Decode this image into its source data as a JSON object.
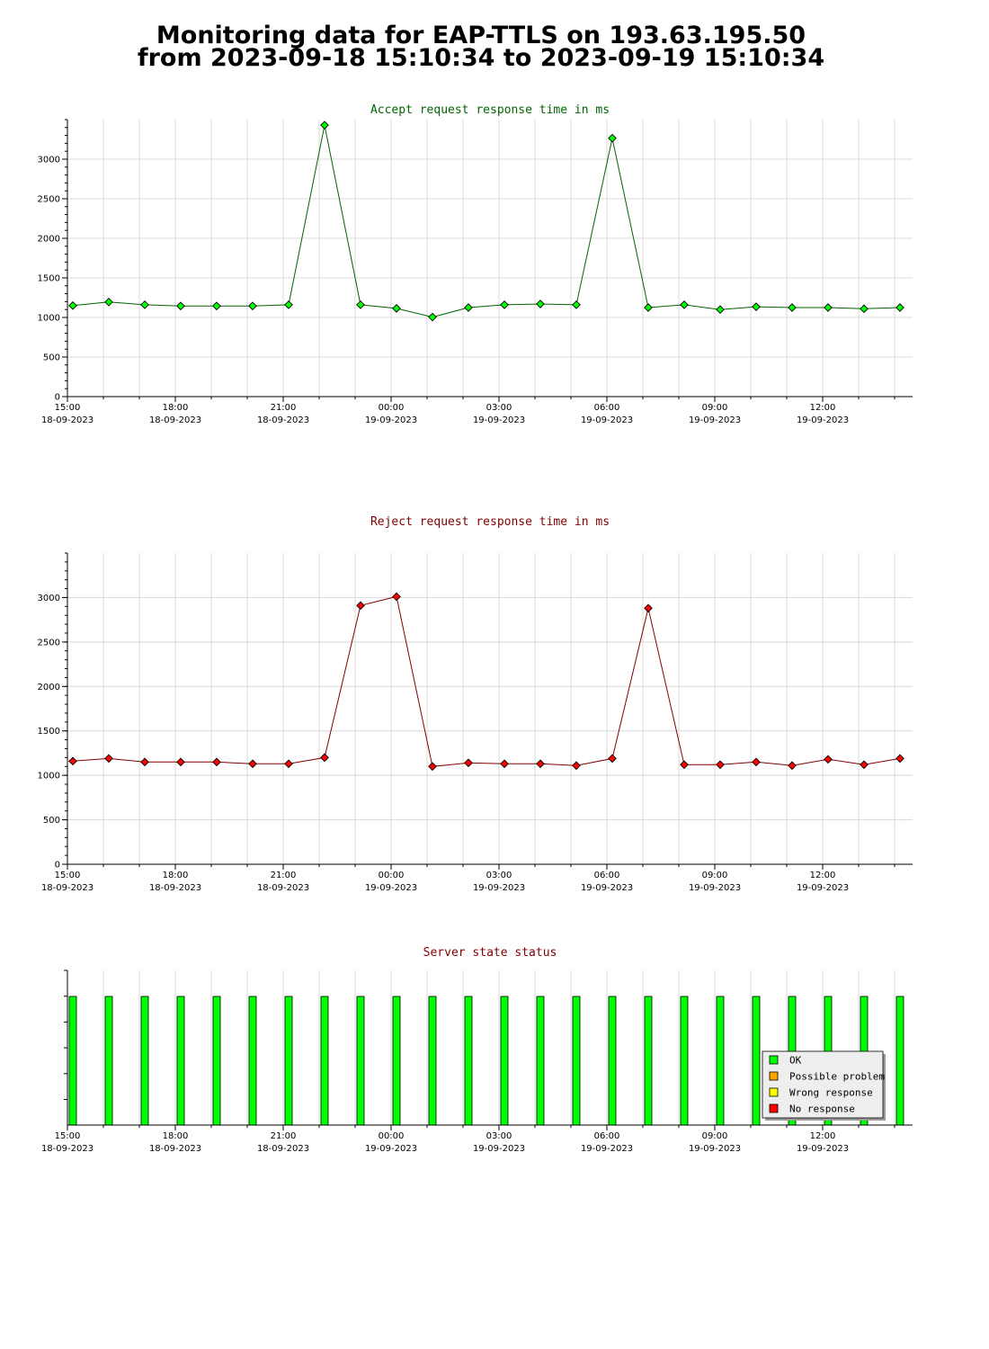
{
  "page": {
    "title_line1": "Monitoring data for EAP-TTLS on 193.63.195.50",
    "title_line2": "from 2023-09-18 15:10:34 to 2023-09-19 15:10:34"
  },
  "colors": {
    "accept_line": "#006400",
    "accept_marker": "#00ff00",
    "reject_line": "#800000",
    "reject_marker": "#ff0000",
    "ok": "#00ff00",
    "possible_problem": "#ffa500",
    "wrong_response": "#ffff00",
    "no_response": "#ff0000"
  },
  "chart_data": [
    {
      "type": "line",
      "title": "Accept request response time in ms",
      "xlabel": "",
      "ylabel": "",
      "x_ticks": [
        {
          "time": "15:00",
          "date": "18-09-2023"
        },
        {
          "time": "18:00",
          "date": "18-09-2023"
        },
        {
          "time": "21:00",
          "date": "18-09-2023"
        },
        {
          "time": "00:00",
          "date": "19-09-2023"
        },
        {
          "time": "03:00",
          "date": "19-09-2023"
        },
        {
          "time": "06:00",
          "date": "19-09-2023"
        },
        {
          "time": "09:00",
          "date": "19-09-2023"
        },
        {
          "time": "12:00",
          "date": "19-09-2023"
        }
      ],
      "x_unit": "hours after 2023-09-18 15:00",
      "xlim": [
        0,
        23.5
      ],
      "ylim": [
        0,
        3500
      ],
      "y_ticks": [
        0,
        500,
        1000,
        1500,
        2000,
        2500,
        3000
      ],
      "grid": true,
      "x": [
        0.15,
        1.15,
        2.15,
        3.15,
        4.15,
        5.15,
        6.15,
        7.15,
        8.15,
        9.15,
        10.15,
        11.15,
        12.15,
        13.15,
        14.15,
        15.15,
        16.15,
        17.15,
        18.15,
        19.15,
        20.15,
        21.15,
        22.15,
        23.15
      ],
      "values": [
        1150,
        1195,
        1160,
        1145,
        1145,
        1145,
        1160,
        3430,
        1160,
        1115,
        1005,
        1125,
        1160,
        1170,
        1160,
        3265,
        1125,
        1160,
        1100,
        1135,
        1125,
        1125,
        1110,
        1125
      ]
    },
    {
      "type": "line",
      "title": "Reject request response time in ms",
      "xlabel": "",
      "ylabel": "",
      "x_ticks": [
        {
          "time": "15:00",
          "date": "18-09-2023"
        },
        {
          "time": "18:00",
          "date": "18-09-2023"
        },
        {
          "time": "21:00",
          "date": "18-09-2023"
        },
        {
          "time": "00:00",
          "date": "19-09-2023"
        },
        {
          "time": "03:00",
          "date": "19-09-2023"
        },
        {
          "time": "06:00",
          "date": "19-09-2023"
        },
        {
          "time": "09:00",
          "date": "19-09-2023"
        },
        {
          "time": "12:00",
          "date": "19-09-2023"
        }
      ],
      "x_unit": "hours after 2023-09-18 15:00",
      "xlim": [
        0,
        23.5
      ],
      "ylim": [
        0,
        3500
      ],
      "y_ticks": [
        0,
        500,
        1000,
        1500,
        2000,
        2500,
        3000
      ],
      "grid": true,
      "x": [
        0.15,
        1.15,
        2.15,
        3.15,
        4.15,
        5.15,
        6.15,
        7.15,
        8.15,
        9.15,
        10.15,
        11.15,
        12.15,
        13.15,
        14.15,
        15.15,
        16.15,
        17.15,
        18.15,
        19.15,
        20.15,
        21.15,
        22.15,
        23.15
      ],
      "values": [
        1160,
        1190,
        1150,
        1150,
        1150,
        1130,
        1130,
        1200,
        2910,
        3010,
        1100,
        1140,
        1130,
        1130,
        1110,
        1190,
        2880,
        1120,
        1120,
        1150,
        1110,
        1180,
        1120,
        1190
      ]
    },
    {
      "type": "bar",
      "title": "Server state status",
      "xlabel": "",
      "ylabel": "",
      "x_ticks": [
        {
          "time": "15:00",
          "date": "18-09-2023"
        },
        {
          "time": "18:00",
          "date": "18-09-2023"
        },
        {
          "time": "21:00",
          "date": "18-09-2023"
        },
        {
          "time": "00:00",
          "date": "19-09-2023"
        },
        {
          "time": "03:00",
          "date": "19-09-2023"
        },
        {
          "time": "06:00",
          "date": "19-09-2023"
        },
        {
          "time": "09:00",
          "date": "19-09-2023"
        },
        {
          "time": "12:00",
          "date": "19-09-2023"
        }
      ],
      "x_unit": "hours after 2023-09-18 15:00",
      "xlim": [
        0,
        23.5
      ],
      "x": [
        0.15,
        1.15,
        2.15,
        3.15,
        4.15,
        5.15,
        6.15,
        7.15,
        8.15,
        9.15,
        10.15,
        11.15,
        12.15,
        13.15,
        14.15,
        15.15,
        16.15,
        17.15,
        18.15,
        19.15,
        20.15,
        21.15,
        22.15,
        23.15
      ],
      "states": [
        "OK",
        "OK",
        "OK",
        "OK",
        "OK",
        "OK",
        "OK",
        "OK",
        "OK",
        "OK",
        "OK",
        "OK",
        "OK",
        "OK",
        "OK",
        "OK",
        "OK",
        "OK",
        "OK",
        "OK",
        "OK",
        "OK",
        "OK",
        "OK"
      ],
      "legend": [
        "OK",
        "Possible problem",
        "Wrong response",
        "No response"
      ],
      "legend_placement": "bottom-right"
    }
  ]
}
